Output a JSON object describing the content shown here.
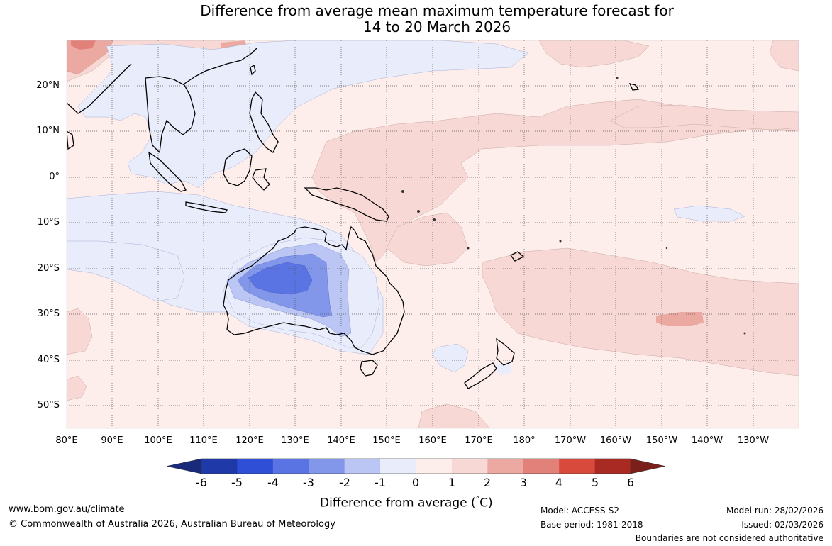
{
  "title": {
    "line1": "Difference from average mean maximum temperature forecast for",
    "line2": "14 to 20 March 2026"
  },
  "map": {
    "lat_labels": [
      "20°N",
      "10°N",
      "0°",
      "10°S",
      "20°S",
      "30°S",
      "40°S",
      "50°S"
    ],
    "lon_labels": [
      "80°E",
      "90°E",
      "100°E",
      "110°E",
      "120°E",
      "130°E",
      "140°E",
      "150°E",
      "160°E",
      "170°E",
      "180°",
      "170°W",
      "160°W",
      "150°W",
      "140°W",
      "130°W"
    ]
  },
  "colorbar": {
    "ticks": [
      "-6",
      "-5",
      "-4",
      "-3",
      "-2",
      "-1",
      "0",
      "1",
      "2",
      "3",
      "4",
      "5",
      "6"
    ],
    "colors": [
      "#1f3aa8",
      "#2e4fd6",
      "#5a75e3",
      "#8397ea",
      "#bcc6f4",
      "#e9ecfb",
      "#fdeeec",
      "#f7d8d5",
      "#eca9a2",
      "#e2807a",
      "#d84a3c",
      "#a82a23"
    ],
    "low_extend_color": "#1a2a7a",
    "high_extend_color": "#7a1f1a",
    "label_prefix": "Difference from average (",
    "label_degree": "°",
    "label_suffix": "C)"
  },
  "footer": {
    "website": "www.bom.gov.au/climate",
    "copyright": "© Commonwealth of Australia 2026, Australian Bureau of Meteorology",
    "model": "Model: ACCESS-S2",
    "base_period": "Base period: 1981-2018",
    "model_run": "Model run: 28/02/2026",
    "issued": "Issued: 02/03/2026",
    "disclaimer": "Boundaries are not considered authoritative"
  }
}
